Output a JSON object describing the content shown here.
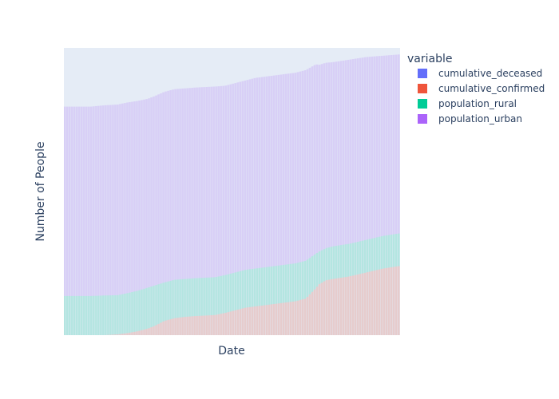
{
  "chart_data": {
    "type": "area",
    "stacked": true,
    "xlabel": "Date",
    "ylabel": "Number of People",
    "x_tick_labels_visible": false,
    "y_tick_labels_visible": false,
    "grid": false,
    "plot_background": "#e5ecf6",
    "legend": {
      "title": "variable",
      "position": "right"
    },
    "x": [
      0,
      4,
      8,
      12,
      16,
      19,
      22,
      25,
      27,
      30,
      33,
      36,
      39,
      42,
      45,
      48,
      51,
      54,
      57,
      60,
      63,
      66,
      69,
      72,
      75,
      76,
      78,
      80,
      85,
      90,
      95,
      100
    ],
    "series": [
      {
        "name": "cumulative_deceased",
        "color": "#636efa",
        "values": [
          0,
          0,
          0,
          0,
          0,
          0,
          0,
          0,
          0,
          0,
          0,
          0,
          0,
          0,
          0,
          0,
          0,
          0,
          0,
          0,
          0,
          0,
          0,
          0,
          0,
          0,
          0,
          0,
          0,
          0,
          0,
          0
        ]
      },
      {
        "name": "cumulative_confirmed",
        "color": "#ef553b",
        "values": [
          0,
          0,
          0,
          0,
          0.3,
          0.8,
          1.5,
          2.5,
          3.5,
          5.5,
          6.5,
          7,
          7.3,
          7.5,
          7.7,
          8.5,
          9.5,
          10.5,
          11,
          11.5,
          12,
          12.5,
          13,
          14,
          18,
          19.5,
          21,
          21.5,
          22.5,
          24,
          25.5,
          26.5
        ]
      },
      {
        "name": "population_rural",
        "color": "#00cc96",
        "values": [
          15,
          15,
          15,
          15.2,
          15,
          15.3,
          15.5,
          15.7,
          15.5,
          14.7,
          14.7,
          14.5,
          14.5,
          14.5,
          14.5,
          14.5,
          14.5,
          14.5,
          14.5,
          14.5,
          14.5,
          14.5,
          14.5,
          14.5,
          13.2,
          12.5,
          12.3,
          12.5,
          12.5,
          12.5,
          12.5,
          12.5
        ]
      },
      {
        "name": "population_urban",
        "color": "#ab63fa",
        "values": [
          72.5,
          72.5,
          72.5,
          72.8,
          73,
          73,
          72.7,
          72.3,
          72.5,
          73,
          73,
          73,
          73,
          73,
          73,
          72.5,
          72.5,
          72.5,
          73,
          73,
          73,
          73,
          73,
          73,
          72.5,
          71.5,
          71,
          70.5,
          70.5,
          70,
          69,
          68.5
        ]
      }
    ],
    "ylim": [
      0,
      110
    ],
    "xlim": [
      0,
      100
    ]
  }
}
